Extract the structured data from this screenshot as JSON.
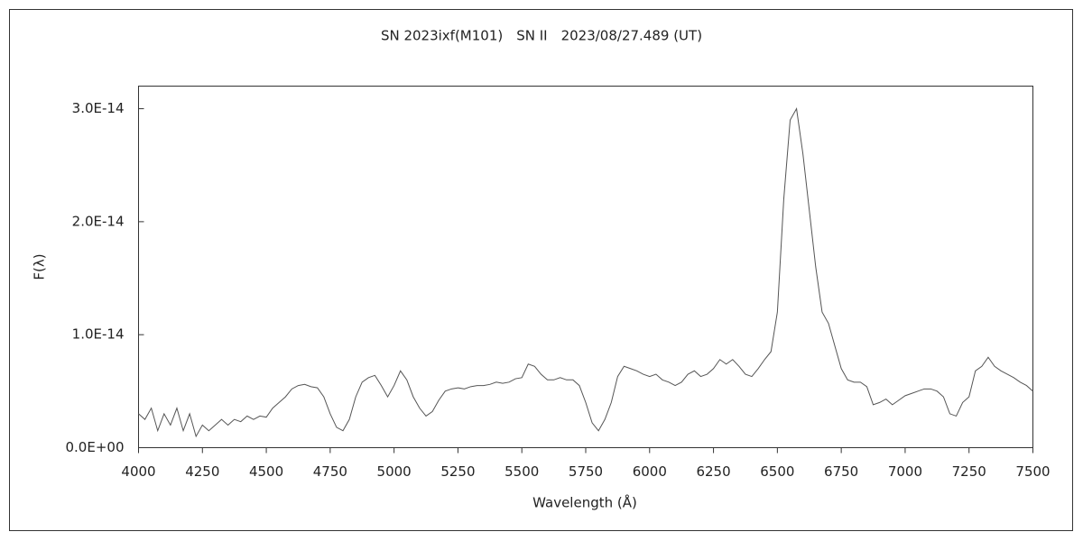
{
  "chart_data": {
    "type": "line",
    "title": "SN 2023ixf(M101)　SN II　2023/08/27.489 (UT)",
    "x_label": "Wavelength (Å)",
    "y_label": "F(λ)",
    "color": "#555555",
    "xlim": [
      4000,
      7500
    ],
    "ylim": [
      0,
      3.2e-14
    ],
    "xticks": [
      4000,
      4250,
      4500,
      4750,
      5000,
      5250,
      5500,
      5750,
      6000,
      6250,
      6500,
      6750,
      7000,
      7250,
      7500
    ],
    "yticks": [
      {
        "value": 0,
        "label": "0.0E+00"
      },
      {
        "value": 1e-14,
        "label": "1.0E-14"
      },
      {
        "value": 2e-14,
        "label": "2.0E-14"
      },
      {
        "value": 3e-14,
        "label": "3.0E-14"
      }
    ],
    "x": [
      4000,
      4025,
      4050,
      4075,
      4100,
      4125,
      4150,
      4175,
      4200,
      4225,
      4250,
      4275,
      4300,
      4325,
      4350,
      4375,
      4400,
      4425,
      4450,
      4475,
      4500,
      4525,
      4550,
      4575,
      4600,
      4625,
      4650,
      4675,
      4700,
      4725,
      4750,
      4775,
      4800,
      4825,
      4850,
      4875,
      4900,
      4925,
      4950,
      4975,
      5000,
      5025,
      5050,
      5075,
      5100,
      5125,
      5150,
      5175,
      5200,
      5225,
      5250,
      5275,
      5300,
      5325,
      5350,
      5375,
      5400,
      5425,
      5450,
      5475,
      5500,
      5525,
      5550,
      5575,
      5600,
      5625,
      5650,
      5675,
      5700,
      5725,
      5750,
      5775,
      5800,
      5825,
      5850,
      5875,
      5900,
      5925,
      5950,
      5975,
      6000,
      6025,
      6050,
      6075,
      6100,
      6125,
      6150,
      6175,
      6200,
      6225,
      6250,
      6275,
      6300,
      6325,
      6350,
      6375,
      6400,
      6425,
      6450,
      6475,
      6500,
      6525,
      6550,
      6575,
      6600,
      6625,
      6650,
      6675,
      6700,
      6725,
      6750,
      6775,
      6800,
      6825,
      6850,
      6875,
      6900,
      6925,
      6950,
      6975,
      7000,
      7025,
      7050,
      7075,
      7100,
      7125,
      7150,
      7175,
      7200,
      7225,
      7250,
      7275,
      7300,
      7325,
      7350,
      7375,
      7400,
      7425,
      7450,
      7475,
      7500
    ],
    "values": [
      3e-15,
      2.5e-15,
      3.5e-15,
      1.5e-15,
      3e-15,
      2e-15,
      3.5e-15,
      1.5e-15,
      3e-15,
      1e-15,
      2e-15,
      1.5e-15,
      2e-15,
      2.5e-15,
      2e-15,
      2.5e-15,
      2.3e-15,
      2.8e-15,
      2.5e-15,
      2.8e-15,
      2.7e-15,
      3.5e-15,
      4e-15,
      4.5e-15,
      5.2e-15,
      5.5e-15,
      5.6e-15,
      5.4e-15,
      5.3e-15,
      4.5e-15,
      3e-15,
      1.8e-15,
      1.5e-15,
      2.5e-15,
      4.5e-15,
      5.8e-15,
      6.2e-15,
      6.4e-15,
      5.5e-15,
      4.5e-15,
      5.5e-15,
      6.8e-15,
      6e-15,
      4.5e-15,
      3.5e-15,
      2.8e-15,
      3.2e-15,
      4.2e-15,
      5e-15,
      5.2e-15,
      5.3e-15,
      5.2e-15,
      5.4e-15,
      5.5e-15,
      5.5e-15,
      5.6e-15,
      5.8e-15,
      5.7e-15,
      5.8e-15,
      6.1e-15,
      6.2e-15,
      7.4e-15,
      7.2e-15,
      6.5e-15,
      6e-15,
      6e-15,
      6.2e-15,
      6e-15,
      6e-15,
      5.5e-15,
      4e-15,
      2.2e-15,
      1.5e-15,
      2.5e-15,
      4e-15,
      6.3e-15,
      7.2e-15,
      7e-15,
      6.8e-15,
      6.5e-15,
      6.3e-15,
      6.5e-15,
      6e-15,
      5.8e-15,
      5.5e-15,
      5.8e-15,
      6.5e-15,
      6.8e-15,
      6.3e-15,
      6.5e-15,
      7e-15,
      7.8e-15,
      7.4e-15,
      7.8e-15,
      7.2e-15,
      6.5e-15,
      6.3e-15,
      7e-15,
      7.8e-15,
      8.5e-15,
      1.2e-14,
      2.2e-14,
      2.9e-14,
      3e-14,
      2.6e-14,
      2.1e-14,
      1.6e-14,
      1.2e-14,
      1.1e-14,
      9e-15,
      7e-15,
      6e-15,
      5.8e-15,
      5.8e-15,
      5.4e-15,
      3.8e-15,
      4e-15,
      4.3e-15,
      3.8e-15,
      4.2e-15,
      4.6e-15,
      4.8e-15,
      5e-15,
      5.2e-15,
      5.2e-15,
      5e-15,
      4.5e-15,
      3e-15,
      2.8e-15,
      4e-15,
      4.5e-15,
      6.8e-15,
      7.2e-15,
      8e-15,
      7.2e-15,
      6.8e-15,
      6.5e-15,
      6.2e-15,
      5.8e-15,
      5.5e-15,
      5e-15
    ]
  }
}
